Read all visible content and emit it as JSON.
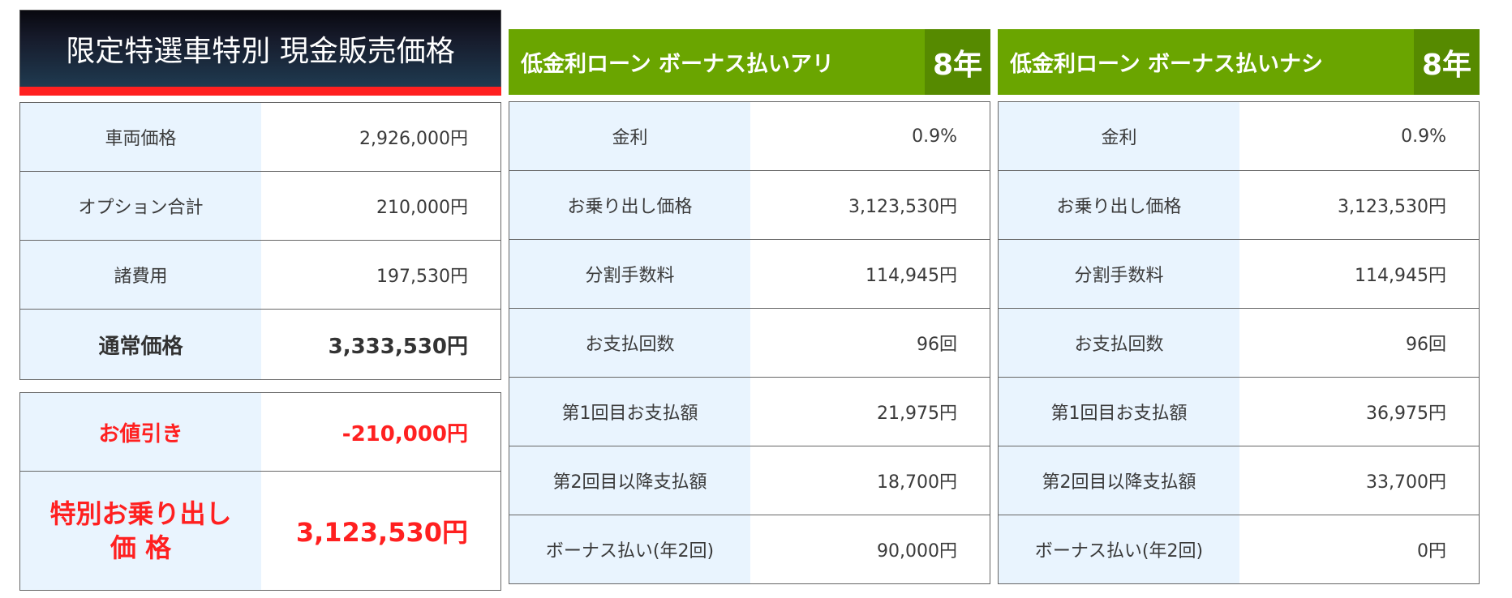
{
  "cash_panel": {
    "title": "限定特選車特別 現金販売価格",
    "colors": {
      "header_top": "#08080f",
      "header_bottom": "#1f3a50",
      "accent_bar": "#ff2020"
    },
    "rows": [
      {
        "label": "車両価格",
        "value": "2,926,000円"
      },
      {
        "label": "オプション合計",
        "value": "210,000円"
      },
      {
        "label": "諸費用",
        "value": "197,530円"
      },
      {
        "label": "通常価格",
        "value": "3,333,530円"
      }
    ],
    "discount": {
      "label": "お値引き",
      "value": "-210,000円"
    },
    "final": {
      "label_line1": "特別お乗り出し",
      "label_line2": "価 格",
      "value": "3,123,530円"
    }
  },
  "loan_panels": [
    {
      "title": "低金利ローン ボーナス払いアリ",
      "term": "8年",
      "rows": [
        {
          "label": "金利",
          "value": "0.9%"
        },
        {
          "label": "お乗り出し価格",
          "value": "3,123,530円"
        },
        {
          "label": "分割手数料",
          "value": "114,945円"
        },
        {
          "label": "お支払回数",
          "value": "96回"
        },
        {
          "label": "第1回目お支払額",
          "value": "21,975円"
        },
        {
          "label": "第2回目以降支払額",
          "value": "18,700円"
        },
        {
          "label": "ボーナス払い(年2回)",
          "value": "90,000円"
        }
      ]
    },
    {
      "title": "低金利ローン ボーナス払いナシ",
      "term": "8年",
      "rows": [
        {
          "label": "金利",
          "value": "0.9%"
        },
        {
          "label": "お乗り出し価格",
          "value": "3,123,530円"
        },
        {
          "label": "分割手数料",
          "value": "114,945円"
        },
        {
          "label": "お支払回数",
          "value": "96回"
        },
        {
          "label": "第1回目お支払額",
          "value": "36,975円"
        },
        {
          "label": "第2回目以降支払額",
          "value": "33,700円"
        },
        {
          "label": "ボーナス払い(年2回)",
          "value": "0円"
        }
      ]
    }
  ],
  "colors": {
    "loan_header": "#6aa500",
    "loan_term_box": "#568a00",
    "label_bg": "#e9f4fe",
    "border": "#666666",
    "highlight_red": "#ff2020"
  }
}
